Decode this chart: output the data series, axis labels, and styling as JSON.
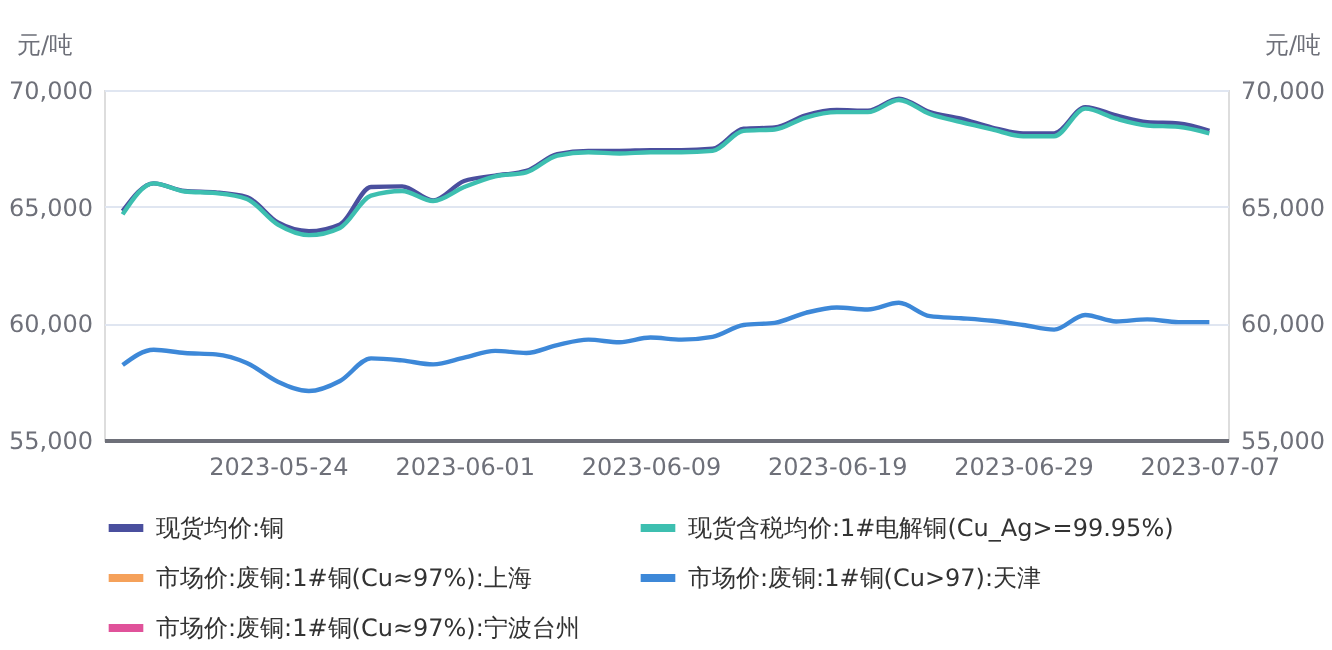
{
  "chart_data": {
    "type": "line",
    "ylabel": "元/吨",
    "y2label": "元/吨",
    "categories": [
      null,
      null,
      null,
      null,
      null,
      "2023-05-24",
      null,
      null,
      null,
      null,
      null,
      "2023-06-01",
      null,
      null,
      null,
      null,
      null,
      "2023-06-09",
      null,
      null,
      null,
      null,
      null,
      "2023-06-19",
      null,
      null,
      null,
      null,
      null,
      "2023-06-29",
      null,
      null,
      null,
      null,
      null,
      "2023-07-07"
    ],
    "ylim": [
      55000,
      70000
    ],
    "yticks": [
      {
        "value": 55000,
        "label": "55,000"
      },
      {
        "value": 60000,
        "label": "60,000"
      },
      {
        "value": 65000,
        "label": "65,000"
      },
      {
        "value": 70000,
        "label": "70,000"
      }
    ],
    "y2lim": [
      55000,
      70000
    ],
    "y2ticks": [
      {
        "value": 55000,
        "label": "55,000"
      },
      {
        "value": 60000,
        "label": "60,000"
      },
      {
        "value": 65000,
        "label": "65,000"
      },
      {
        "value": 70000,
        "label": "70,000"
      }
    ],
    "grid": "y",
    "legend": "bottom",
    "marker": "none",
    "line_style": "solid",
    "series": [
      {
        "name": "现货均价:铜",
        "color": "#4a4f9e",
        "values": [
          64810,
          66000,
          65670,
          65610,
          65410,
          64320,
          63950,
          64240,
          65840,
          65870,
          65270,
          66100,
          66330,
          66530,
          67250,
          67390,
          67390,
          67420,
          67420,
          67480,
          68340,
          68390,
          68910,
          69140,
          69110,
          69630,
          69050,
          68770,
          68390,
          68140,
          68140,
          69260,
          68910,
          68620,
          68570,
          68250
        ]
      },
      {
        "name": "现货含税均价:1#电解铜(Cu_Ag>=99.95%)",
        "color": "#3dbfb0",
        "values": [
          64670,
          66000,
          65650,
          65580,
          65330,
          64230,
          63780,
          64090,
          65470,
          65670,
          65240,
          65840,
          66300,
          66470,
          67190,
          67330,
          67280,
          67330,
          67330,
          67390,
          68250,
          68310,
          68820,
          69050,
          69050,
          69570,
          68970,
          68620,
          68310,
          68020,
          68020,
          69200,
          68770,
          68480,
          68420,
          68140
        ]
      },
      {
        "name": "市场价:废铜:1#铜(Cu≈97%):上海",
        "color": "#f5a15a",
        "values": [
          null,
          null,
          null,
          null,
          null,
          null,
          null,
          null,
          null,
          null,
          null,
          null,
          null,
          null,
          null,
          null,
          null,
          null,
          null,
          null,
          null,
          null,
          null,
          null,
          null,
          null,
          null,
          null,
          null,
          null,
          null,
          null,
          null,
          null,
          null,
          null
        ]
      },
      {
        "name": "市场价:废铜:1#铜(Cu>97):天津",
        "color": "#3d88d8",
        "values": [
          58210,
          58870,
          58730,
          58670,
          58300,
          57500,
          57100,
          57530,
          58500,
          58410,
          58240,
          58530,
          58820,
          58730,
          59070,
          59300,
          59190,
          59390,
          59300,
          59420,
          59930,
          60020,
          60450,
          60680,
          60590,
          60880,
          60310,
          60220,
          60110,
          59930,
          59730,
          60360,
          60080,
          60170,
          60050,
          60050
        ]
      },
      {
        "name": "市场价:废铜:1#铜(Cu≈97%):宁波台州",
        "color": "#e0529a",
        "values": [
          null,
          null,
          null,
          null,
          null,
          null,
          null,
          null,
          null,
          null,
          null,
          null,
          null,
          null,
          null,
          null,
          null,
          null,
          null,
          null,
          null,
          null,
          null,
          null,
          null,
          null,
          null,
          null,
          null,
          null,
          null,
          null,
          null,
          null,
          null,
          null
        ]
      }
    ]
  }
}
